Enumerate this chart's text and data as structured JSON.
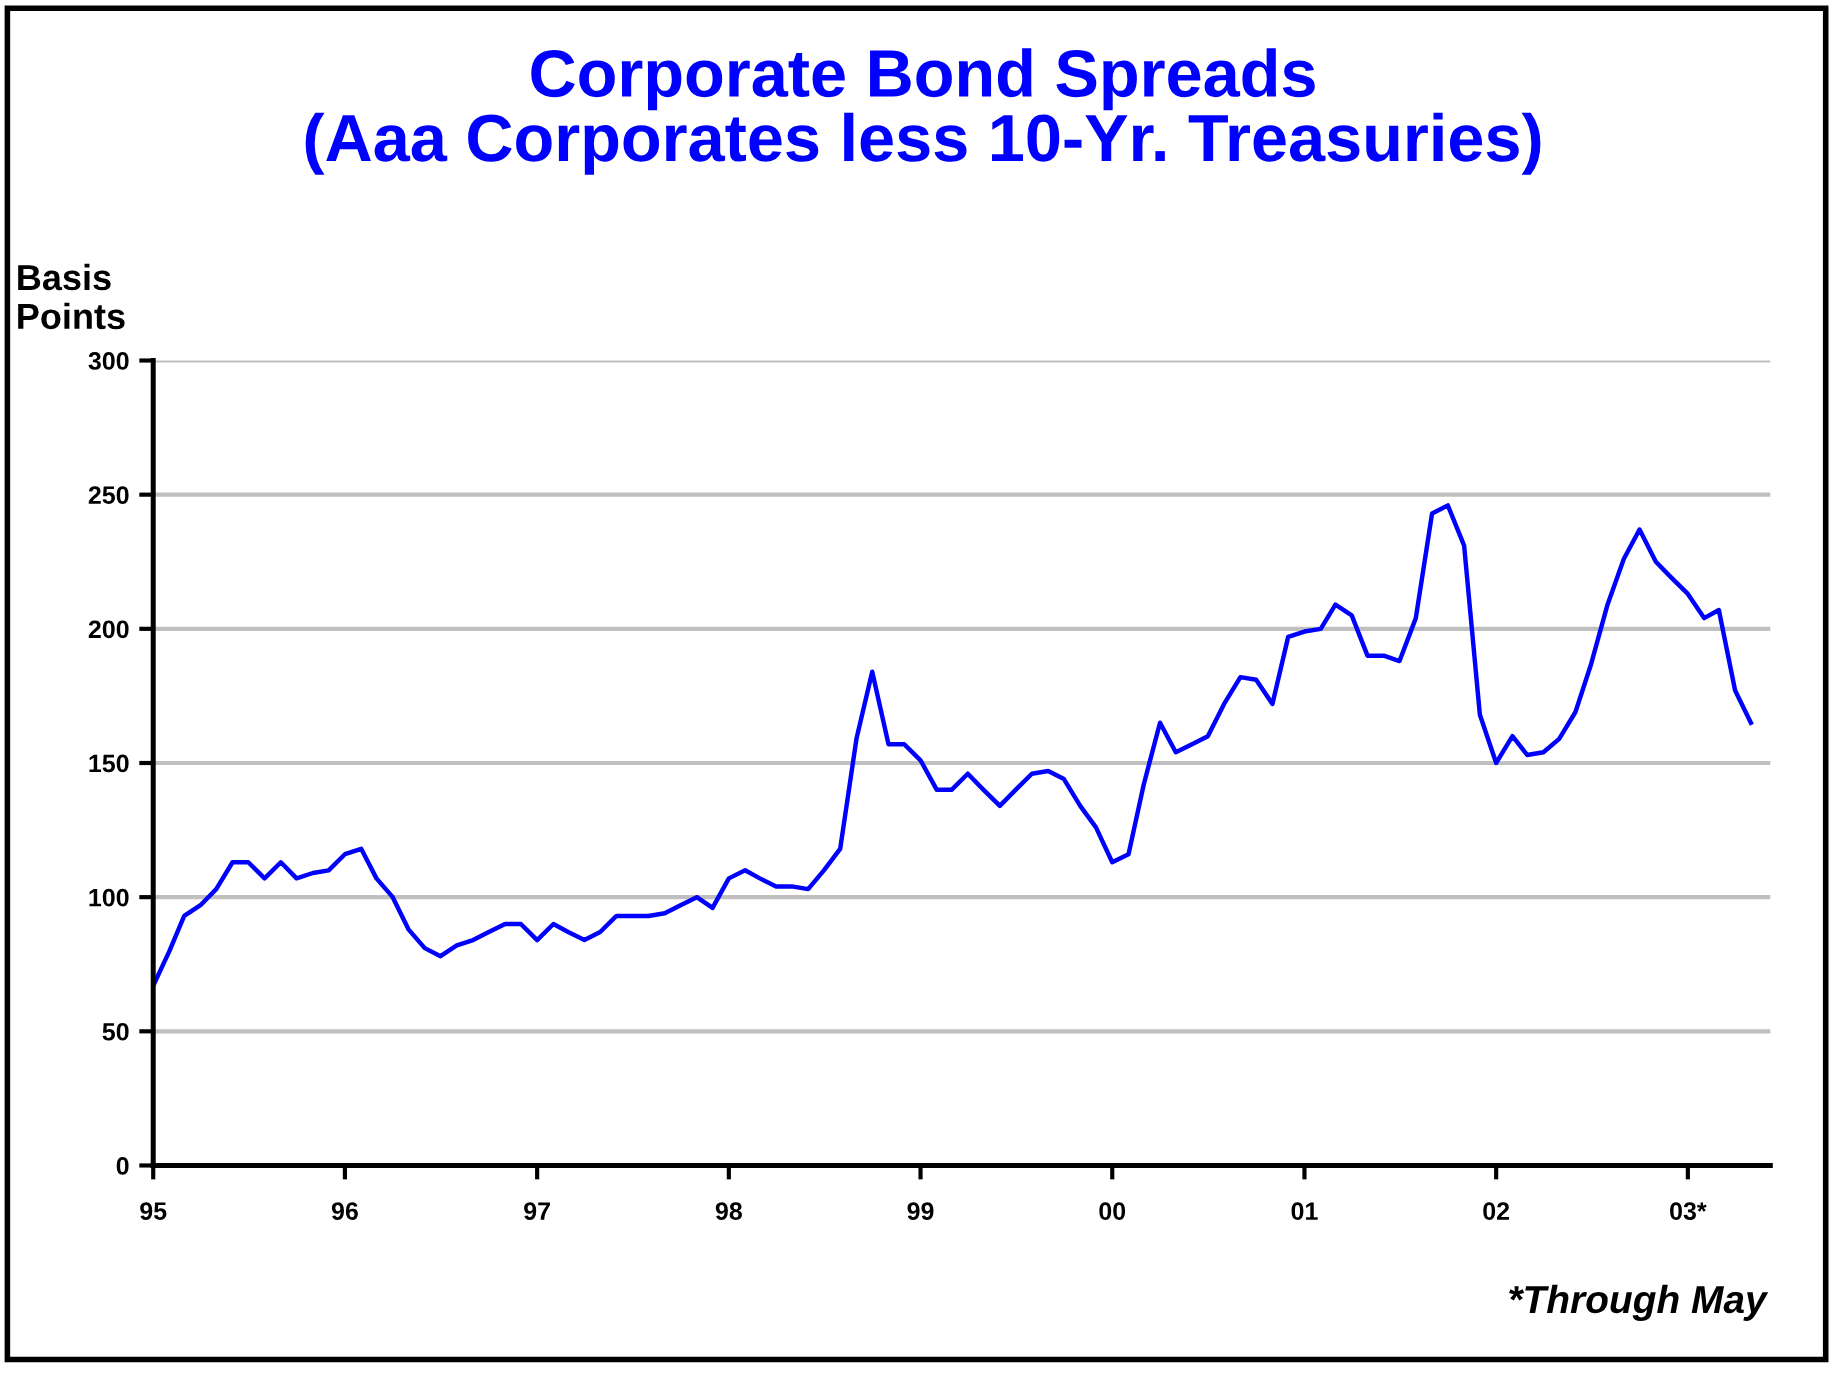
{
  "chart_data": {
    "type": "line",
    "title": "Corporate Bond Spreads\n(Aaa Corporates less 10-Yr. Treasuries)",
    "ylabel": "Basis\nPoints",
    "x": [
      "1995-01",
      "1995-02",
      "1995-03",
      "1995-04",
      "1995-05",
      "1995-06",
      "1995-07",
      "1995-08",
      "1995-09",
      "1995-10",
      "1995-11",
      "1995-12",
      "1996-01",
      "1996-02",
      "1996-03",
      "1996-04",
      "1996-05",
      "1996-06",
      "1996-07",
      "1996-08",
      "1996-09",
      "1996-10",
      "1996-11",
      "1996-12",
      "1997-01",
      "1997-02",
      "1997-03",
      "1997-04",
      "1997-05",
      "1997-06",
      "1997-07",
      "1997-08",
      "1997-09",
      "1997-10",
      "1997-11",
      "1997-12",
      "1998-01",
      "1998-02",
      "1998-03",
      "1998-04",
      "1998-05",
      "1998-06",
      "1998-07",
      "1998-08",
      "1998-09",
      "1998-10",
      "1998-11",
      "1998-12",
      "1999-01",
      "1999-02",
      "1999-03",
      "1999-04",
      "1999-05",
      "1999-06",
      "1999-07",
      "1999-08",
      "1999-09",
      "1999-10",
      "1999-11",
      "1999-12",
      "2000-01",
      "2000-02",
      "2000-03",
      "2000-04",
      "2000-05",
      "2000-06",
      "2000-07",
      "2000-08",
      "2000-09",
      "2000-10",
      "2000-11",
      "2000-12",
      "2001-01",
      "2001-02",
      "2001-03",
      "2001-04",
      "2001-05",
      "2001-06",
      "2001-07",
      "2001-08",
      "2001-09",
      "2001-10",
      "2001-11",
      "2001-12",
      "2002-01",
      "2002-02",
      "2002-03",
      "2002-04",
      "2002-05",
      "2002-06",
      "2002-07",
      "2002-08",
      "2002-09",
      "2002-10",
      "2002-11",
      "2002-12",
      "2003-01",
      "2003-02",
      "2003-03",
      "2003-04",
      "2003-05"
    ],
    "series": [
      {
        "color": "#0000ff",
        "values": [
          67,
          80,
          93,
          97,
          103,
          113,
          113,
          107,
          113,
          107,
          109,
          110,
          116,
          118,
          107,
          100,
          88,
          81,
          78,
          82,
          84,
          87,
          90,
          90,
          84,
          90,
          87,
          84,
          87,
          93,
          93,
          93,
          94,
          97,
          100,
          96,
          107,
          110,
          107,
          104,
          104,
          103,
          110,
          118,
          159,
          184,
          157,
          157,
          151,
          140,
          140,
          146,
          140,
          134,
          140,
          146,
          147,
          144,
          134,
          126,
          113,
          116,
          142,
          165,
          154,
          157,
          160,
          172,
          182,
          181,
          172,
          197,
          199,
          200,
          209,
          205,
          190,
          190,
          188,
          204,
          243,
          246,
          231,
          168,
          150,
          160,
          153,
          154,
          159,
          169,
          187,
          209,
          226,
          237,
          225,
          219,
          213,
          204,
          207,
          177,
          165
        ]
      }
    ],
    "xlim": [
      "1995-01-01",
      "2003-06-07"
    ],
    "xticks": [
      {
        "value": "1995-01-01",
        "label": "95"
      },
      {
        "value": "1996-01-01",
        "label": "96"
      },
      {
        "value": "1997-01-01",
        "label": "97"
      },
      {
        "value": "1998-01-01",
        "label": "98"
      },
      {
        "value": "1999-01-01",
        "label": "99"
      },
      {
        "value": "2000-01-01",
        "label": "00"
      },
      {
        "value": "2001-01-01",
        "label": "01"
      },
      {
        "value": "2002-01-01",
        "label": "02"
      },
      {
        "value": "2003-01-01",
        "label": "03*"
      }
    ],
    "ylim": [
      0,
      300
    ],
    "yticks": [
      0,
      50,
      100,
      150,
      200,
      250,
      300
    ],
    "grid": "y",
    "marker": "none",
    "line_style": "solid",
    "annotations": [
      "*Through May"
    ]
  }
}
